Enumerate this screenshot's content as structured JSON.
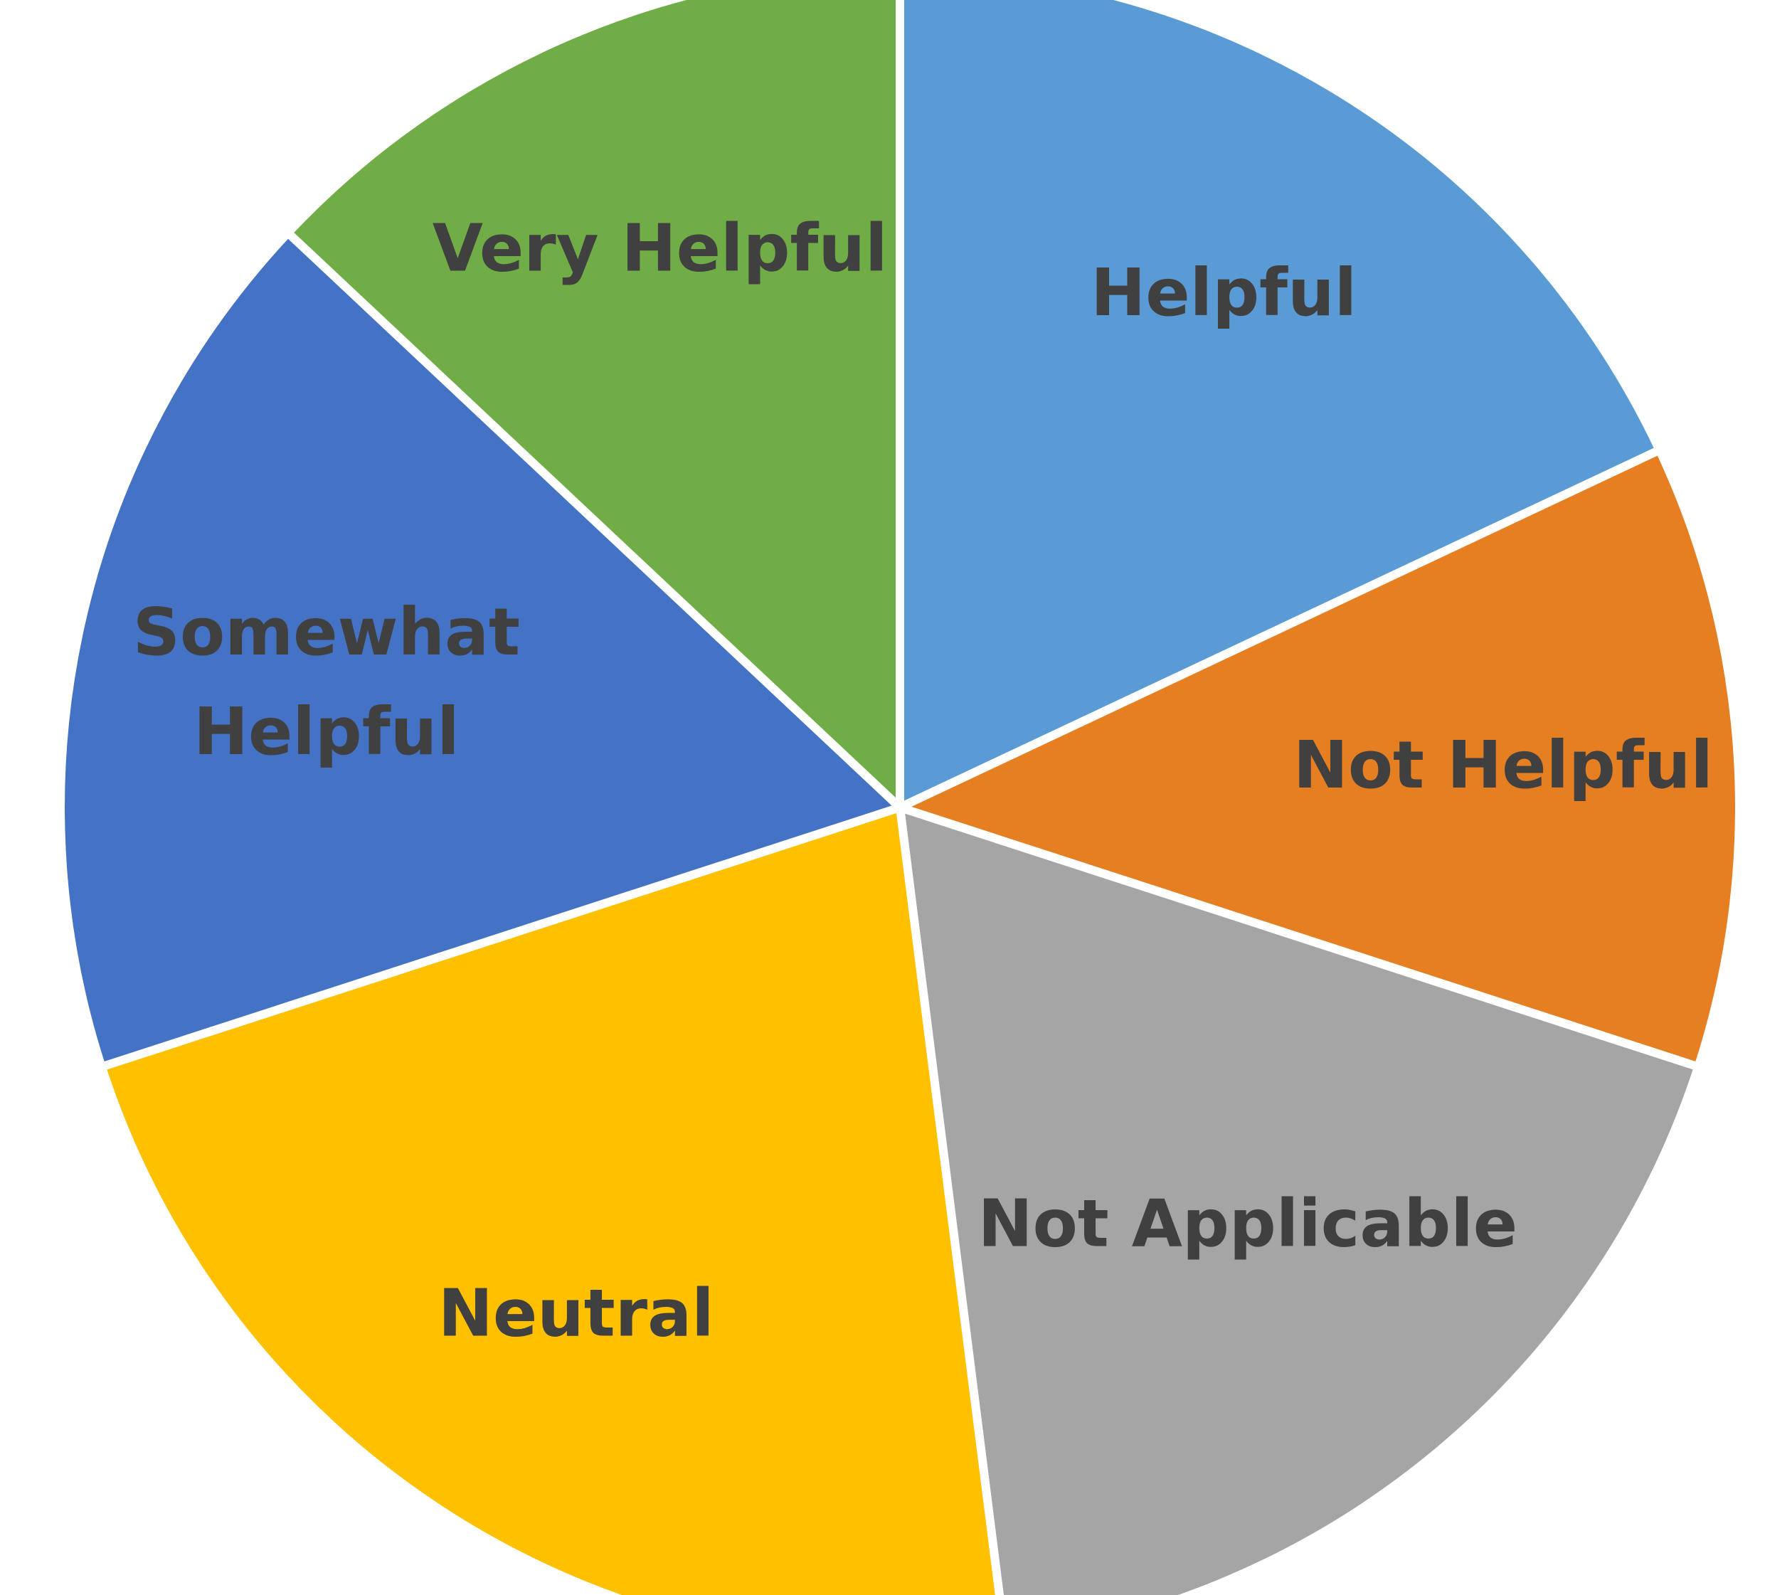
{
  "chart_data": {
    "type": "pie",
    "title": "",
    "labels_on_slices": true,
    "legend": "none",
    "slices": [
      {
        "label": "Helpful",
        "value": 18,
        "color": "#5B9BD5"
      },
      {
        "label": "Not Helpful",
        "value": 12,
        "color": "#E67E22"
      },
      {
        "label": "Not Applicable",
        "value": 18,
        "color": "#A5A5A5"
      },
      {
        "label": "Neutral",
        "value": 22,
        "color": "#FFC000"
      },
      {
        "label": "Somewhat Helpful",
        "value": 17,
        "color": "#4472C4"
      },
      {
        "label": "Very Helpful",
        "value": 13,
        "color": "#70AD47"
      }
    ]
  }
}
